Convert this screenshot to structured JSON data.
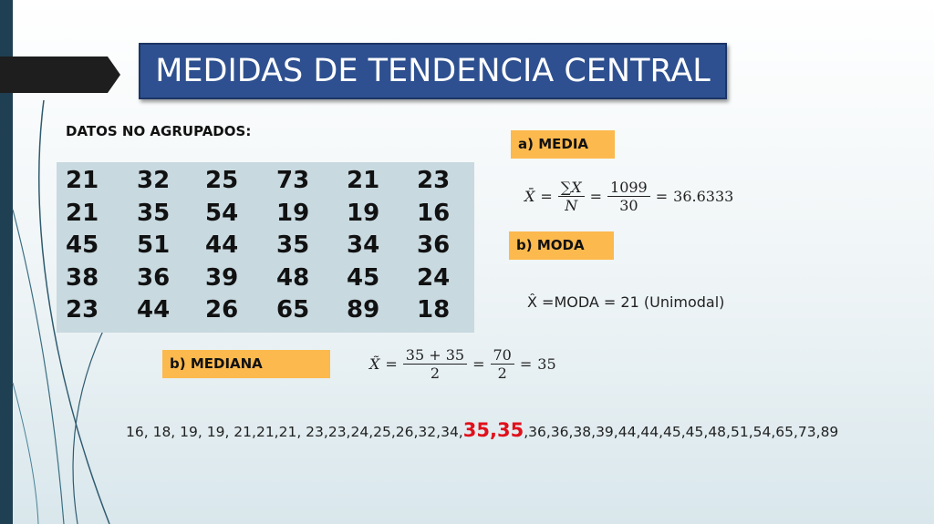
{
  "header": {
    "title": "MEDIDAS DE TENDENCIA CENTRAL"
  },
  "data_heading": "DATOS NO AGRUPADOS:",
  "table": {
    "rows": [
      [
        21,
        32,
        25,
        73,
        21,
        23
      ],
      [
        21,
        35,
        54,
        19,
        19,
        16
      ],
      [
        45,
        51,
        44,
        35,
        34,
        36
      ],
      [
        38,
        36,
        39,
        48,
        45,
        24
      ],
      [
        23,
        44,
        26,
        65,
        89,
        18
      ]
    ]
  },
  "media": {
    "label": "a) MEDIA",
    "symbol": "X̄",
    "equals": "=",
    "numerator_1": "∑X",
    "denominator_1": "N",
    "numerator_2": "1099",
    "denominator_2": "30",
    "result": "36.6333"
  },
  "moda": {
    "label": "b) MODA",
    "formula": "X̂ =MODA = 21 (Unimodal)"
  },
  "mediana": {
    "label": "b) MEDIANA",
    "symbol": "X̃",
    "equals": "=",
    "numerator_1": "35 + 35",
    "denominator_1": "2",
    "numerator_2": "70",
    "denominator_2": "2",
    "result": "35"
  },
  "sorted_data": {
    "before": "16, 18, 19, 19, 21,21,21, 23,23,24,25,26,32,34,",
    "highlight": "35,35",
    "after": ",36,36,38,39,44,44,45,45,48,51,54,65,73,89"
  }
}
